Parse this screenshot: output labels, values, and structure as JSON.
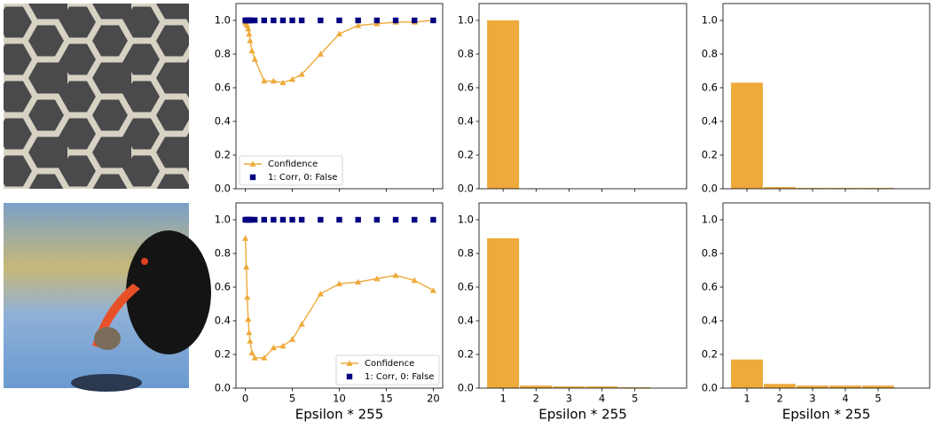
{
  "chart_data": [
    {
      "type": "line",
      "xlim": [
        -1,
        21
      ],
      "ylim": [
        0,
        1.1
      ],
      "xticks": [
        0,
        5,
        10,
        15,
        20
      ],
      "show_xtick_labels": false,
      "yticks": [
        {
          "value": 0,
          "label": "0.0"
        },
        0.2,
        0.4,
        0.6,
        0.8,
        {
          "value": 1,
          "label": "1.0"
        }
      ],
      "legend": "lower left",
      "x": [
        0,
        0.1,
        0.2,
        0.3,
        0.4,
        0.5,
        0.7,
        1,
        2,
        3,
        4,
        5,
        6,
        8,
        10,
        12,
        14,
        16,
        18,
        20
      ],
      "series": [
        {
          "name": "Confidence",
          "color": "#eeaa3a",
          "marker": "triangle",
          "line": true,
          "values": [
            0.99,
            0.98,
            0.97,
            0.95,
            0.92,
            0.88,
            0.82,
            0.77,
            0.64,
            0.64,
            0.63,
            0.65,
            0.68,
            0.8,
            0.92,
            0.97,
            0.98,
            0.99,
            0.99,
            1.0
          ]
        },
        {
          "name": "1: Corr, 0: False",
          "color": "#000080",
          "marker": "square",
          "line": false,
          "values": [
            1,
            1,
            1,
            1,
            1,
            1,
            1,
            1,
            1,
            1,
            1,
            1,
            1,
            1,
            1,
            1,
            1,
            1,
            1,
            1
          ]
        }
      ]
    },
    {
      "type": "bar",
      "xlim": [
        0.27,
        6.57
      ],
      "ylim": [
        0,
        1.1
      ],
      "xticks": [
        1,
        2,
        3,
        4,
        5
      ],
      "show_xtick_labels": false,
      "yticks": [
        {
          "value": 0,
          "label": "0.0"
        },
        0.2,
        0.4,
        0.6,
        0.8,
        {
          "value": 1,
          "label": "1.0"
        }
      ],
      "color": "#eeaa3a",
      "x": [
        1,
        2,
        3,
        4,
        5
      ],
      "values": [
        1.0,
        0,
        0,
        0,
        0
      ]
    },
    {
      "type": "bar",
      "xlim": [
        0.27,
        6.57
      ],
      "ylim": [
        0,
        1.1
      ],
      "xticks": [
        1,
        2,
        3,
        4,
        5
      ],
      "show_xtick_labels": false,
      "yticks": [
        {
          "value": 0,
          "label": "0.0"
        },
        0.2,
        0.4,
        0.6,
        0.8,
        {
          "value": 1,
          "label": "1.0"
        }
      ],
      "color": "#eeaa3a",
      "x": [
        1,
        2,
        3,
        4,
        5
      ],
      "values": [
        0.63,
        0.01,
        0.005,
        0.005,
        0.005
      ]
    },
    {
      "type": "line",
      "xlim": [
        -1,
        21
      ],
      "ylim": [
        0,
        1.1
      ],
      "xticks": [
        0,
        5,
        10,
        15,
        20
      ],
      "show_xtick_labels": true,
      "yticks": [
        {
          "value": 0,
          "label": "0.0"
        },
        0.2,
        0.4,
        0.6,
        0.8,
        {
          "value": 1,
          "label": "1.0"
        }
      ],
      "legend": "lower right",
      "x_label": "Epsilon * 255",
      "x": [
        0,
        0.1,
        0.2,
        0.3,
        0.4,
        0.5,
        0.7,
        1,
        2,
        3,
        4,
        5,
        6,
        8,
        10,
        12,
        14,
        16,
        18,
        20
      ],
      "series": [
        {
          "name": "Confidence",
          "color": "#eeaa3a",
          "marker": "triangle",
          "line": true,
          "values": [
            0.89,
            0.72,
            0.54,
            0.41,
            0.33,
            0.28,
            0.21,
            0.18,
            0.18,
            0.24,
            0.25,
            0.29,
            0.38,
            0.56,
            0.62,
            0.63,
            0.65,
            0.67,
            0.64,
            0.58
          ]
        },
        {
          "name": "1: Corr, 0: False",
          "color": "#000080",
          "marker": "square",
          "line": false,
          "values": [
            1,
            1,
            1,
            1,
            1,
            1,
            1,
            1,
            1,
            1,
            1,
            1,
            1,
            1,
            1,
            1,
            1,
            1,
            1,
            1
          ]
        }
      ]
    },
    {
      "type": "bar",
      "xlim": [
        0.27,
        6.57
      ],
      "ylim": [
        0,
        1.1
      ],
      "xticks": [
        1,
        2,
        3,
        4,
        5
      ],
      "show_xtick_labels": true,
      "yticks": [
        {
          "value": 0,
          "label": "0.0"
        },
        0.2,
        0.4,
        0.6,
        0.8,
        {
          "value": 1,
          "label": "1.0"
        }
      ],
      "color": "#eeaa3a",
      "x_label": "Epsilon * 255",
      "x": [
        1,
        2,
        3,
        4,
        5
      ],
      "values": [
        0.89,
        0.015,
        0.01,
        0.01,
        0.005
      ]
    },
    {
      "type": "bar",
      "xlim": [
        0.27,
        6.57
      ],
      "ylim": [
        0,
        1.1
      ],
      "xticks": [
        1,
        2,
        3,
        4,
        5
      ],
      "show_xtick_labels": true,
      "yticks": [
        {
          "value": 0,
          "label": "0.0"
        },
        0.2,
        0.4,
        0.6,
        0.8,
        {
          "value": 1,
          "label": "1.0"
        }
      ],
      "color": "#eeaa3a",
      "x_label": "Epsilon * 255",
      "x": [
        1,
        2,
        3,
        4,
        5
      ],
      "values": [
        0.17,
        0.025,
        0.015,
        0.015,
        0.015
      ]
    }
  ]
}
